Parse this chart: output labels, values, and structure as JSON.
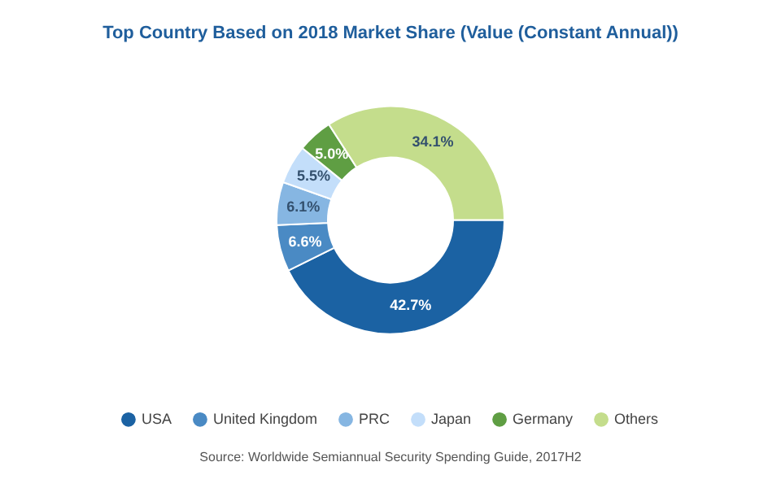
{
  "chart_data": {
    "type": "donut",
    "title": "Top Country Based on 2018 Market Share (Value (Constant Annual))",
    "categories": [
      "USA",
      "United Kingdom",
      "PRC",
      "Japan",
      "Germany",
      "Others"
    ],
    "values": [
      42.7,
      6.6,
      6.1,
      5.5,
      5.0,
      34.1
    ],
    "value_labels": [
      "42.7%",
      "6.6%",
      "6.1%",
      "5.5%",
      "5.0%",
      "34.1%"
    ],
    "colors": [
      "#1b62a3",
      "#4a8ac4",
      "#86b6e2",
      "#c3defa",
      "#5f9e43",
      "#c4dd8c"
    ],
    "legend": "bottom",
    "annotations": [
      "Source: Worldwide Semiannual Security Spending Guide, 2017H2"
    ]
  }
}
